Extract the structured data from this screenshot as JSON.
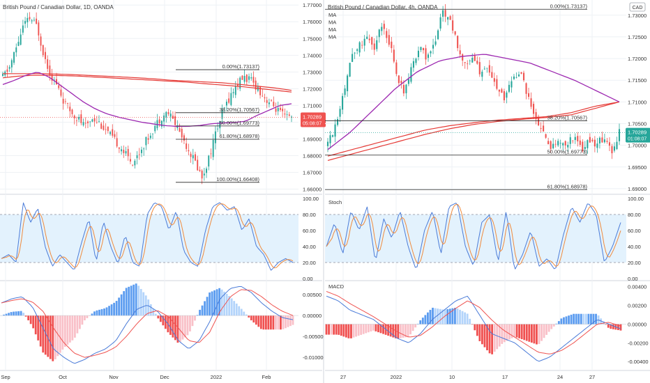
{
  "colors": {
    "bull": "#26a69a",
    "bear": "#ef5350",
    "ma_fast": "#9c27b0",
    "ma_slow": "#e53935",
    "stoch_k": "#4a7bd8",
    "stoch_d": "#f08a3c",
    "stoch_band": "#e3f2fd",
    "macd_line": "#4a7bd8",
    "signal_line": "#ef5350",
    "hist_pos_strong": "#5b9cf0",
    "hist_pos_weak": "#b3d4fb",
    "hist_neg_strong": "#f05050",
    "hist_neg_weak": "#f9c0c8",
    "grid": "#eef1f5",
    "axis_text": "#333333",
    "fib_line": "#222222",
    "price_badge_left": "#ef5350",
    "price_badge_right": "#26a69a"
  },
  "chart_data": [
    {
      "id": "daily",
      "type": "candlestick",
      "title": "British Pound / Canadian Dollar, 1D, OANDA",
      "x_labels": [
        "Sep",
        "Oct",
        "Nov",
        "Dec",
        "2022",
        "Feb"
      ],
      "y_ticks": [
        "1.77000",
        "1.76000",
        "1.75000",
        "1.74000",
        "1.73000",
        "1.72000",
        "1.71000",
        "1.70000",
        "1.69000",
        "1.68000",
        "1.67000",
        "1.66000"
      ],
      "ylim": [
        1.659,
        1.773
      ],
      "last_price": "1.70289",
      "countdown": "05:08:07",
      "fib_levels": [
        {
          "label": "0.00%(1.73137)",
          "value": 1.73137
        },
        {
          "label": "38.20%(1.70567)",
          "value": 1.70567
        },
        {
          "label": "50.00%(1.69773)",
          "value": 1.69773
        },
        {
          "label": "61.80%(1.68978)",
          "value": 1.68978
        },
        {
          "label": "100.00%(1.66408)",
          "value": 1.66408
        }
      ],
      "close_path": [
        1.727,
        1.733,
        1.745,
        1.758,
        1.762,
        1.757,
        1.74,
        1.728,
        1.721,
        1.711,
        1.706,
        1.702,
        1.697,
        1.703,
        1.7,
        1.695,
        1.69,
        1.686,
        1.68,
        1.676,
        1.683,
        1.69,
        1.697,
        1.703,
        1.706,
        1.7,
        1.692,
        1.684,
        1.676,
        1.667,
        1.679,
        1.694,
        1.706,
        1.715,
        1.722,
        1.727,
        1.725,
        1.721,
        1.715,
        1.711,
        1.707,
        1.703,
        1.703
      ],
      "ma_fast": [
        1.7225,
        1.725,
        1.728,
        1.73,
        1.727,
        1.722,
        1.717,
        1.712,
        1.708,
        1.705,
        1.703,
        1.7015,
        1.7,
        1.699,
        1.698,
        1.6975,
        1.6975,
        1.698,
        1.699,
        1.6995,
        1.6998,
        1.7005,
        1.704,
        1.707,
        1.71,
        1.711
      ],
      "ma_slow": [
        1.7265,
        1.7275,
        1.728,
        1.728,
        1.7278,
        1.7275,
        1.727,
        1.7265,
        1.726,
        1.7255,
        1.725,
        1.7245,
        1.724,
        1.7232,
        1.7225,
        1.7218,
        1.721,
        1.72,
        1.719,
        1.718
      ],
      "ma_slow2": [
        1.729,
        1.729,
        1.729,
        1.7288,
        1.7285,
        1.728,
        1.7275,
        1.727,
        1.7265,
        1.7258,
        1.725,
        1.7245,
        1.724,
        1.7235,
        1.7225,
        1.7215,
        1.7205,
        1.719
      ],
      "stoch_ticks": [
        "100.00",
        "80.00",
        "60.00",
        "40.00",
        "20.00",
        "0.00"
      ],
      "stoch_k": [
        25,
        30,
        20,
        95,
        70,
        88,
        40,
        15,
        30,
        20,
        10,
        45,
        75,
        20,
        72,
        40,
        18,
        55,
        20,
        15,
        80,
        95,
        90,
        60,
        85,
        35,
        20,
        15,
        60,
        90,
        95,
        85,
        90,
        60,
        75,
        40,
        30,
        10,
        20,
        25,
        20
      ],
      "macd_ticks": [
        "0.00500",
        "0.00000",
        "-0.00500",
        "-0.01000"
      ],
      "macd_line": [
        0.003,
        0.004,
        0.0045,
        0.002,
        -0.003,
        -0.008,
        -0.01,
        -0.0115,
        -0.0105,
        -0.009,
        -0.008,
        -0.006,
        -0.002,
        0.0015,
        0.0025,
        0.001,
        -0.002,
        -0.006,
        -0.008,
        -0.006,
        -0.0015,
        0.004,
        0.0065,
        0.007,
        0.0055,
        0.003,
        0.001,
        -0.0005,
        -0.001
      ],
      "signal_line": [
        0.003,
        0.0036,
        0.004,
        0.0032,
        0.001,
        -0.003,
        -0.0065,
        -0.009,
        -0.01,
        -0.0095,
        -0.0088,
        -0.0075,
        -0.005,
        -0.002,
        0.0005,
        0.0012,
        -0.0002,
        -0.003,
        -0.006,
        -0.0065,
        -0.004,
        0.001,
        0.0045,
        0.0062,
        0.006,
        0.0045,
        0.0025,
        0.001,
        0.0
      ]
    },
    {
      "id": "h4",
      "type": "candlestick",
      "title": "British Pound / Canadian Dollar, 4h, OANDA",
      "ma_labels": [
        "MA",
        "MA",
        "MA",
        "MA"
      ],
      "x_labels": [
        "27",
        "2022",
        "10",
        "17",
        "24",
        "27"
      ],
      "y_ticks": [
        "1.73000",
        "1.72500",
        "1.72000",
        "1.71500",
        "1.71000",
        "1.70500",
        "1.70000",
        "1.69500",
        "1.69000"
      ],
      "ylim": [
        1.6895,
        1.7335
      ],
      "last_price": "1.70289",
      "countdown": "01:08:07",
      "currency": "CAD",
      "fib_levels": [
        {
          "label": "0.00%(1.73137)",
          "value": 1.73137
        },
        {
          "label": "38.20%(1.70567)",
          "value": 1.70567
        },
        {
          "label": "50.00%(1.69773)",
          "value": 1.69773
        },
        {
          "label": "61.80%(1.68978)",
          "value": 1.68978
        }
      ],
      "close_path": [
        1.7,
        1.705,
        1.712,
        1.72,
        1.723,
        1.725,
        1.722,
        1.728,
        1.724,
        1.716,
        1.712,
        1.718,
        1.723,
        1.72,
        1.724,
        1.731,
        1.729,
        1.722,
        1.719,
        1.72,
        1.716,
        1.718,
        1.713,
        1.711,
        1.715,
        1.717,
        1.712,
        1.706,
        1.703,
        1.699,
        1.701,
        1.7,
        1.702,
        1.699,
        1.701,
        1.7,
        1.702,
        1.6985,
        1.7029
      ],
      "ma_fast": [
        1.699,
        1.703,
        1.708,
        1.713,
        1.717,
        1.7195,
        1.7205,
        1.721,
        1.72,
        1.719,
        1.717,
        1.715,
        1.7125,
        1.71
      ],
      "ma_slow": [
        1.6975,
        1.699,
        1.7005,
        1.702,
        1.7035,
        1.7045,
        1.7052,
        1.7058,
        1.7062,
        1.7066,
        1.7075,
        1.709,
        1.71
      ],
      "ma_slow2": [
        1.6965,
        1.698,
        1.6995,
        1.701,
        1.7025,
        1.7038,
        1.7048,
        1.7055,
        1.706,
        1.7064,
        1.707,
        1.7085,
        1.71
      ],
      "stoch_label": "Stoch",
      "stoch_ticks": [
        "100.00",
        "80.00",
        "60.00",
        "40.00",
        "20.00",
        "0.00"
      ],
      "stoch_k": [
        40,
        70,
        30,
        85,
        60,
        90,
        20,
        75,
        50,
        85,
        40,
        10,
        60,
        85,
        30,
        90,
        95,
        40,
        15,
        70,
        80,
        20,
        85,
        10,
        30,
        60,
        15,
        25,
        10,
        55,
        90,
        70,
        95,
        80,
        20,
        40,
        70
      ],
      "macd_label": "MACD",
      "macd_ticks": [
        "0.00400",
        "0.00200",
        "0.00000",
        "-0.00200",
        "-0.00400"
      ],
      "macd_line": [
        0.003,
        0.0025,
        0.0015,
        0.001,
        0.0005,
        -0.0005,
        -0.0015,
        -0.002,
        -0.001,
        0.0005,
        0.0015,
        0.0025,
        0.003,
        0.001,
        -0.001,
        -0.0015,
        -0.002,
        -0.003,
        -0.004,
        -0.0035,
        -0.0025,
        -0.0015,
        -0.0005,
        0.0005,
        0.0,
        -0.0005
      ],
      "signal_line": [
        0.0035,
        0.003,
        0.0022,
        0.0015,
        0.0008,
        0.0,
        -0.0008,
        -0.0014,
        -0.0012,
        -0.0003,
        0.0008,
        0.0017,
        0.0025,
        0.0018,
        0.0005,
        -0.0006,
        -0.0014,
        -0.0022,
        -0.003,
        -0.0032,
        -0.0028,
        -0.002,
        -0.001,
        0.0,
        0.0002,
        -0.0002
      ]
    }
  ]
}
